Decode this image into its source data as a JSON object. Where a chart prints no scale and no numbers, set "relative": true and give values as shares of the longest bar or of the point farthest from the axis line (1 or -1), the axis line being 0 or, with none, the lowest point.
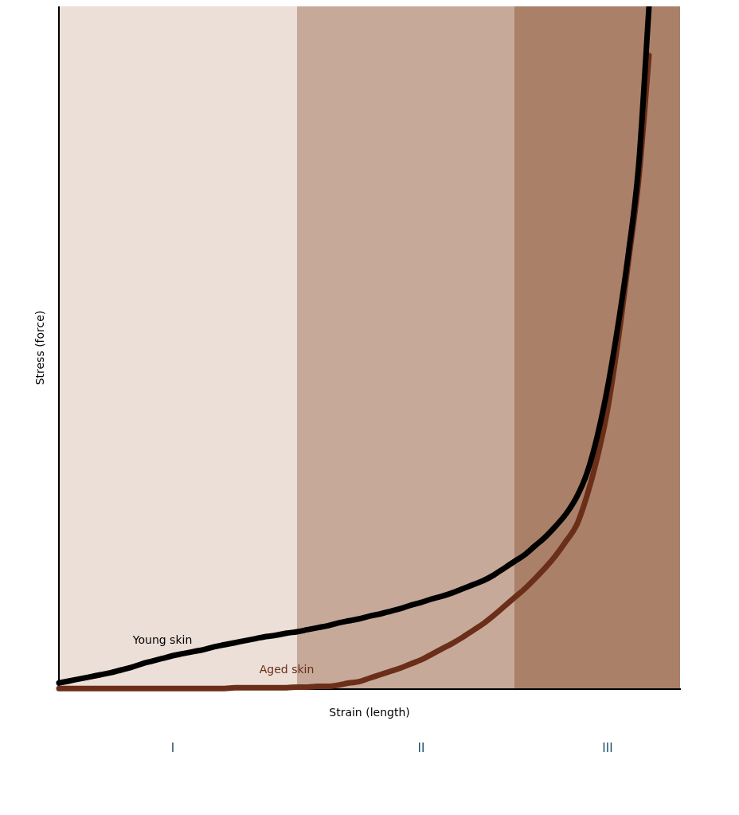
{
  "chart_data": {
    "type": "line",
    "relative": true,
    "xlabel": "Strain (length)",
    "ylabel": "Stress (force)",
    "grid": false,
    "legend": false,
    "marker": "none",
    "line_style": "solid",
    "categories": [
      null,
      null,
      null,
      null,
      null,
      null,
      null,
      null,
      null,
      null,
      null,
      "I",
      null,
      null,
      null,
      null,
      null,
      null,
      null,
      null,
      null,
      null,
      null,
      null,
      null,
      null,
      null,
      null,
      null,
      null,
      null,
      null,
      null,
      null,
      null,
      "II",
      null,
      null,
      null,
      null,
      null,
      null,
      null,
      null,
      null,
      null,
      null,
      null,
      null,
      null,
      null,
      null,
      null,
      "III",
      null,
      null,
      null,
      null,
      null,
      null,
      null
    ],
    "series": [
      {
        "name": "Young skin",
        "color": "#000000",
        "values": [
          0.009,
          0.012,
          0.015,
          0.018,
          0.021,
          0.024,
          0.028,
          0.032,
          0.037,
          0.041,
          0.045,
          0.049,
          0.052,
          0.055,
          0.058,
          0.062,
          0.065,
          0.068,
          0.071,
          0.074,
          0.077,
          0.079,
          0.082,
          0.084,
          0.087,
          0.09,
          0.093,
          0.097,
          0.1,
          0.103,
          0.107,
          0.11,
          0.114,
          0.118,
          0.123,
          0.127,
          0.132,
          0.136,
          0.141,
          0.147,
          0.153,
          0.159,
          0.167,
          0.177,
          0.187,
          0.197,
          0.21,
          0.223,
          0.239,
          0.257,
          0.281,
          0.316,
          0.37,
          0.442,
          0.532,
          0.637,
          0.767,
          1,
          null,
          null,
          null
        ]
      },
      {
        "name": "Aged skin",
        "color": "#6b2e18",
        "values": [
          0.001,
          0.001,
          0.001,
          0.001,
          0.001,
          0.001,
          0.001,
          0.001,
          0.001,
          0.001,
          0.001,
          0.001,
          0.001,
          0.001,
          0.001,
          0.001,
          0.001,
          0.002,
          0.002,
          0.002,
          0.002,
          0.002,
          0.002,
          0.003,
          0.003,
          0.004,
          0.004,
          0.006,
          0.009,
          0.011,
          0.016,
          0.021,
          0.026,
          0.031,
          0.037,
          0.043,
          0.051,
          0.059,
          0.067,
          0.076,
          0.086,
          0.096,
          0.108,
          0.121,
          0.134,
          0.147,
          0.162,
          0.178,
          0.196,
          0.217,
          0.24,
          0.283,
          0.339,
          0.41,
          0.509,
          0.625,
          0.746,
          0.928,
          null,
          null,
          null
        ]
      }
    ]
  }
}
